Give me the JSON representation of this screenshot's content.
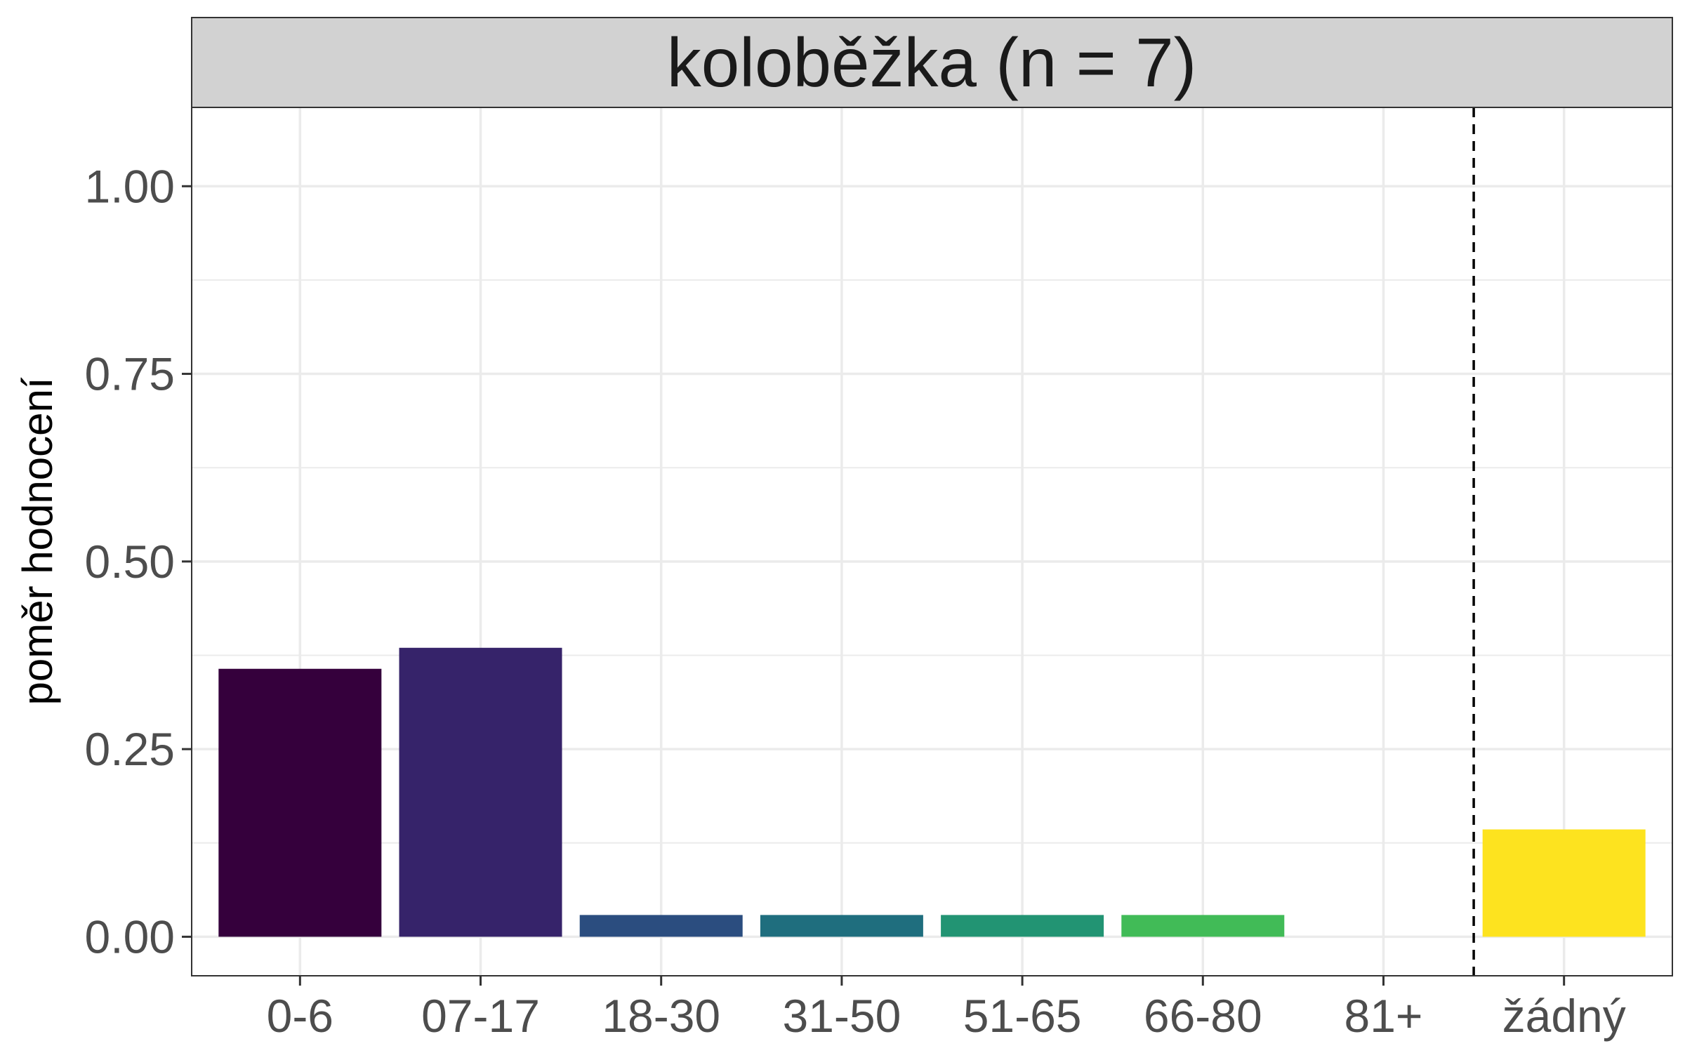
{
  "chart_data": {
    "type": "bar",
    "title": "koloběžka (n = 7)",
    "xlabel": "",
    "ylabel": "poměr hodnocení",
    "categories": [
      "0-6",
      "07-17",
      "18-30",
      "31-50",
      "51-65",
      "66-80",
      "81+",
      "žádný"
    ],
    "values": [
      0.357,
      0.385,
      0.029,
      0.029,
      0.029,
      0.029,
      0.0,
      0.143
    ],
    "bar_colors": [
      "#35003c",
      "#36236a",
      "#2b4d7f",
      "#1f6e7e",
      "#229473",
      "#41bb57",
      "#9ad93c",
      "#fde31f"
    ],
    "ylim": [
      -0.052,
      1.105
    ],
    "yticks": [
      0.0,
      0.25,
      0.5,
      0.75,
      1.0
    ],
    "ytick_labels": [
      "0.00",
      "0.25",
      "0.50",
      "0.75",
      "1.00"
    ],
    "grid": true,
    "vline_after_category": "81+",
    "vline_style": "dashed",
    "colors": {
      "strip_background": "#d2d2d2",
      "grid": "#ebebeb",
      "panel_border": "#333333",
      "vline": "#000000"
    }
  }
}
